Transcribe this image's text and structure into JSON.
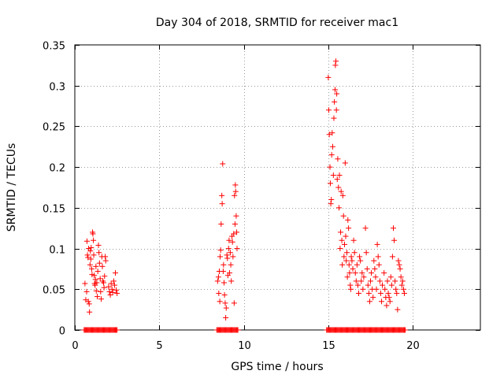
{
  "chart_data": {
    "type": "scatter",
    "title": "Day 304 of 2018, SRMTID for receiver mac1",
    "xlabel": "GPS time / hours",
    "ylabel": "SRMTID / TECUs",
    "xlim": [
      0,
      24
    ],
    "ylim": [
      0,
      0.35
    ],
    "grid": true,
    "marker": "+",
    "series_color": "#ff0000",
    "x_ticks": [
      {
        "value": 0,
        "label": "0"
      },
      {
        "value": 5,
        "label": "5"
      },
      {
        "value": 10,
        "label": "10"
      },
      {
        "value": 15,
        "label": "15"
      },
      {
        "value": 20,
        "label": "20"
      }
    ],
    "y_ticks": [
      {
        "value": 0,
        "label": "0"
      },
      {
        "value": 0.05,
        "label": "0.05"
      },
      {
        "value": 0.1,
        "label": "0.1"
      },
      {
        "value": 0.15,
        "label": "0.15"
      },
      {
        "value": 0.2,
        "label": "0.2"
      },
      {
        "value": 0.25,
        "label": "0.25"
      },
      {
        "value": 0.3,
        "label": "0.3"
      },
      {
        "value": 0.35,
        "label": "0.35"
      }
    ],
    "series": [
      {
        "name": "mac1",
        "points": [
          [
            0.6,
            0.057
          ],
          [
            0.65,
            0.037
          ],
          [
            0.7,
            0.047
          ],
          [
            0.72,
            0.109
          ],
          [
            0.75,
            0.092
          ],
          [
            0.78,
            0.089
          ],
          [
            0.8,
            0.035
          ],
          [
            0.82,
            0.1
          ],
          [
            0.85,
            0.032
          ],
          [
            0.87,
            0.022
          ],
          [
            0.9,
            0.08
          ],
          [
            0.92,
            0.097
          ],
          [
            0.95,
            0.087
          ],
          [
            0.97,
            0.101
          ],
          [
            1.0,
            0.075
          ],
          [
            1.02,
            0.068
          ],
          [
            1.05,
            0.12
          ],
          [
            1.07,
            0.118
          ],
          [
            1.1,
            0.11
          ],
          [
            1.12,
            0.092
          ],
          [
            1.15,
            0.067
          ],
          [
            1.17,
            0.057
          ],
          [
            1.2,
            0.055
          ],
          [
            1.22,
            0.062
          ],
          [
            1.25,
            0.078
          ],
          [
            1.27,
            0.048
          ],
          [
            1.3,
            0.058
          ],
          [
            1.33,
            0.041
          ],
          [
            1.36,
            0.072
          ],
          [
            1.4,
            0.104
          ],
          [
            1.43,
            0.095
          ],
          [
            1.46,
            0.082
          ],
          [
            1.5,
            0.063
          ],
          [
            1.53,
            0.047
          ],
          [
            1.56,
            0.038
          ],
          [
            1.6,
            0.09
          ],
          [
            1.63,
            0.078
          ],
          [
            1.66,
            0.06
          ],
          [
            1.7,
            0.058
          ],
          [
            1.73,
            0.052
          ],
          [
            1.76,
            0.066
          ],
          [
            1.8,
            0.09
          ],
          [
            1.83,
            0.085
          ],
          [
            2.0,
            0.053
          ],
          [
            2.05,
            0.047
          ],
          [
            2.1,
            0.043
          ],
          [
            2.15,
            0.057
          ],
          [
            2.2,
            0.05
          ],
          [
            2.25,
            0.046
          ],
          [
            2.3,
            0.06
          ],
          [
            2.35,
            0.055
          ],
          [
            2.4,
            0.07
          ],
          [
            2.45,
            0.049
          ],
          [
            2.5,
            0.045
          ],
          [
            8.45,
            0.06
          ],
          [
            8.5,
            0.065
          ],
          [
            8.52,
            0.045
          ],
          [
            8.55,
            0.072
          ],
          [
            8.58,
            0.035
          ],
          [
            8.6,
            0.09
          ],
          [
            8.63,
            0.098
          ],
          [
            8.66,
            0.13
          ],
          [
            8.7,
            0.165
          ],
          [
            8.72,
            0.155
          ],
          [
            8.75,
            0.204
          ],
          [
            8.78,
            0.072
          ],
          [
            8.8,
            0.08
          ],
          [
            8.83,
            0.058
          ],
          [
            8.86,
            0.043
          ],
          [
            8.9,
            0.033
          ],
          [
            8.93,
            0.015
          ],
          [
            8.96,
            0.027
          ],
          [
            9.0,
            0.092
          ],
          [
            9.03,
            0.088
          ],
          [
            9.06,
            0.067
          ],
          [
            9.1,
            0.1
          ],
          [
            9.13,
            0.11
          ],
          [
            9.16,
            0.07
          ],
          [
            9.2,
            0.095
          ],
          [
            9.23,
            0.08
          ],
          [
            9.26,
            0.06
          ],
          [
            9.3,
            0.115
          ],
          [
            9.33,
            0.108
          ],
          [
            9.36,
            0.09
          ],
          [
            9.4,
            0.118
          ],
          [
            9.43,
            0.033
          ],
          [
            9.45,
            0.165
          ],
          [
            9.48,
            0.13
          ],
          [
            9.5,
            0.178
          ],
          [
            9.52,
            0.17
          ],
          [
            9.55,
            0.14
          ],
          [
            9.58,
            0.12
          ],
          [
            9.6,
            0.1
          ],
          [
            15.0,
            0.31
          ],
          [
            15.03,
            0.27
          ],
          [
            15.06,
            0.24
          ],
          [
            15.1,
            0.2
          ],
          [
            15.12,
            0.18
          ],
          [
            15.15,
            0.155
          ],
          [
            15.18,
            0.16
          ],
          [
            15.2,
            0.215
          ],
          [
            15.23,
            0.242
          ],
          [
            15.26,
            0.225
          ],
          [
            15.3,
            0.19
          ],
          [
            15.33,
            0.26
          ],
          [
            15.36,
            0.28
          ],
          [
            15.4,
            0.295
          ],
          [
            15.42,
            0.325
          ],
          [
            15.45,
            0.33
          ],
          [
            15.48,
            0.27
          ],
          [
            15.5,
            0.29
          ],
          [
            15.53,
            0.185
          ],
          [
            15.56,
            0.21
          ],
          [
            15.6,
            0.175
          ],
          [
            15.63,
            0.15
          ],
          [
            15.66,
            0.19
          ],
          [
            15.7,
            0.1
          ],
          [
            15.73,
            0.12
          ],
          [
            15.76,
            0.17
          ],
          [
            15.8,
            0.11
          ],
          [
            15.83,
            0.08
          ],
          [
            15.86,
            0.165
          ],
          [
            15.9,
            0.14
          ],
          [
            15.93,
            0.09
          ],
          [
            15.96,
            0.105
          ],
          [
            16.0,
            0.205
          ],
          [
            16.03,
            0.115
          ],
          [
            16.06,
            0.085
          ],
          [
            16.1,
            0.095
          ],
          [
            16.13,
            0.065
          ],
          [
            16.16,
            0.135
          ],
          [
            16.2,
            0.125
          ],
          [
            16.23,
            0.08
          ],
          [
            16.26,
            0.07
          ],
          [
            16.3,
            0.055
          ],
          [
            16.33,
            0.05
          ],
          [
            16.36,
            0.09
          ],
          [
            16.4,
            0.085
          ],
          [
            16.45,
            0.075
          ],
          [
            16.5,
            0.11
          ],
          [
            16.55,
            0.095
          ],
          [
            16.6,
            0.07
          ],
          [
            16.65,
            0.06
          ],
          [
            16.7,
            0.08
          ],
          [
            16.75,
            0.055
          ],
          [
            16.8,
            0.045
          ],
          [
            16.85,
            0.09
          ],
          [
            16.9,
            0.085
          ],
          [
            16.95,
            0.06
          ],
          [
            17.0,
            0.07
          ],
          [
            17.05,
            0.05
          ],
          [
            17.1,
            0.065
          ],
          [
            17.2,
            0.125
          ],
          [
            17.25,
            0.095
          ],
          [
            17.3,
            0.075
          ],
          [
            17.35,
            0.055
          ],
          [
            17.4,
            0.045
          ],
          [
            17.45,
            0.035
          ],
          [
            17.5,
            0.06
          ],
          [
            17.55,
            0.07
          ],
          [
            17.6,
            0.05
          ],
          [
            17.65,
            0.04
          ],
          [
            17.7,
            0.085
          ],
          [
            17.75,
            0.075
          ],
          [
            17.8,
            0.065
          ],
          [
            17.85,
            0.05
          ],
          [
            17.9,
            0.105
          ],
          [
            17.95,
            0.09
          ],
          [
            18.0,
            0.08
          ],
          [
            18.05,
            0.06
          ],
          [
            18.1,
            0.045
          ],
          [
            18.15,
            0.035
          ],
          [
            18.2,
            0.055
          ],
          [
            18.3,
            0.07
          ],
          [
            18.35,
            0.05
          ],
          [
            18.4,
            0.04
          ],
          [
            18.45,
            0.03
          ],
          [
            18.5,
            0.06
          ],
          [
            18.55,
            0.045
          ],
          [
            18.6,
            0.04
          ],
          [
            18.65,
            0.035
          ],
          [
            18.7,
            0.065
          ],
          [
            18.75,
            0.055
          ],
          [
            18.8,
            0.09
          ],
          [
            18.85,
            0.125
          ],
          [
            18.9,
            0.11
          ],
          [
            18.95,
            0.06
          ],
          [
            19.0,
            0.05
          ],
          [
            19.05,
            0.045
          ],
          [
            19.1,
            0.025
          ],
          [
            19.15,
            0.085
          ],
          [
            19.2,
            0.08
          ],
          [
            19.25,
            0.075
          ],
          [
            19.3,
            0.065
          ],
          [
            19.35,
            0.055
          ],
          [
            19.4,
            0.06
          ],
          [
            19.45,
            0.05
          ],
          [
            19.5,
            0.045
          ]
        ],
        "baseline_ranges": [
          [
            0.55,
            2.5
          ],
          [
            8.4,
            9.65
          ],
          [
            14.9,
            19.55
          ]
        ]
      }
    ]
  }
}
